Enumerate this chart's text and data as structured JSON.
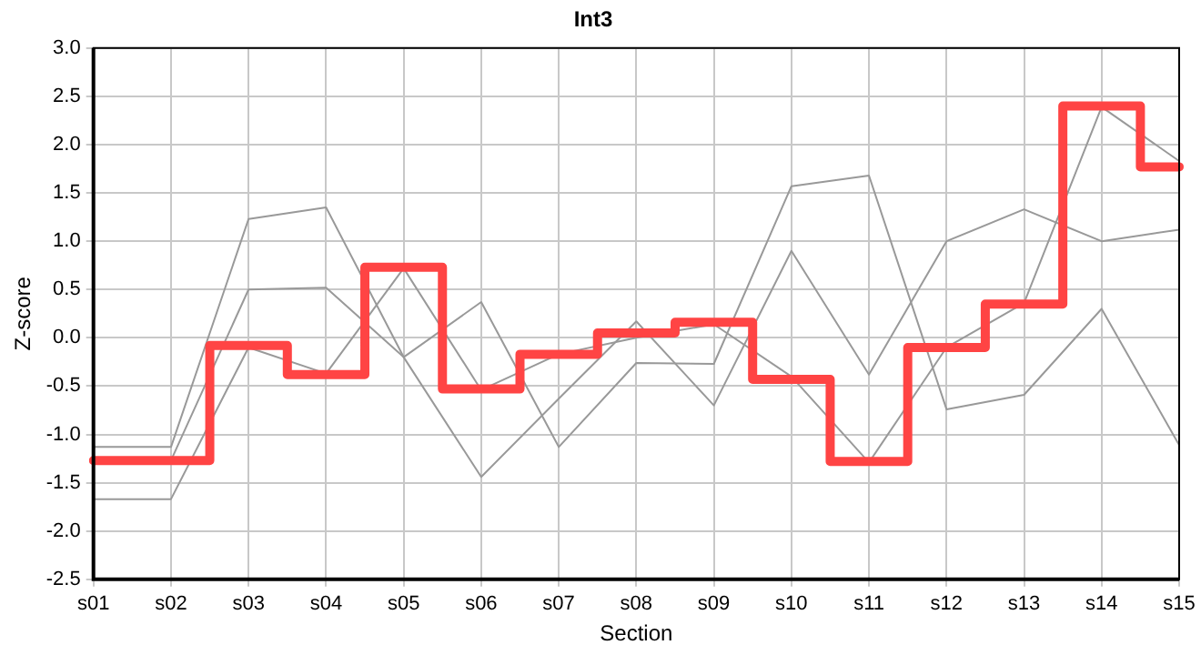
{
  "chart_data": {
    "type": "line",
    "title": "Int3",
    "xlabel": "Section",
    "ylabel": "Z-score",
    "categories": [
      "s01",
      "s02",
      "s03",
      "s04",
      "s05",
      "s06",
      "s07",
      "s08",
      "s09",
      "s10",
      "s11",
      "s12",
      "s13",
      "s14",
      "s15"
    ],
    "series": [
      {
        "type": "line",
        "color": "#999999",
        "values": [
          -1.13,
          -1.13,
          1.23,
          1.35,
          -0.2,
          -1.44,
          -0.63,
          0.17,
          -0.7,
          0.9,
          -0.38,
          1.0,
          1.33,
          1.0,
          1.12
        ]
      },
      {
        "type": "line",
        "color": "#999999",
        "values": [
          -1.27,
          -1.27,
          0.5,
          0.52,
          -0.2,
          0.37,
          -1.13,
          -0.26,
          -0.27,
          1.57,
          1.68,
          -0.74,
          -0.59,
          0.3,
          -1.11
        ]
      },
      {
        "type": "line",
        "color": "#999999",
        "values": [
          -1.67,
          -1.67,
          -0.1,
          -0.37,
          0.72,
          -0.54,
          -0.17,
          0.0,
          0.14,
          -0.4,
          -1.29,
          -0.1,
          0.36,
          2.39,
          1.83
        ]
      },
      {
        "type": "step",
        "color": "#ff4444",
        "values": [
          -1.27,
          -1.27,
          -0.08,
          -0.38,
          0.73,
          -0.53,
          -0.17,
          0.05,
          0.16,
          -0.43,
          -1.28,
          -0.1,
          0.35,
          2.4,
          1.77
        ]
      }
    ],
    "ylim": [
      -2.5,
      3.0
    ],
    "yticks": [
      -2.5,
      {
        "value": -2,
        "label": "-2.0"
      },
      -1.5,
      {
        "value": -1,
        "label": "-1.0"
      },
      -0.5,
      {
        "value": 0,
        "label": "0.0"
      },
      0.5,
      {
        "value": 1,
        "label": "1.0"
      },
      1.5,
      {
        "value": 2,
        "label": "2.0"
      },
      2.5,
      {
        "value": 3,
        "label": "3.0"
      }
    ],
    "grid": true,
    "legend": false,
    "marker": "none",
    "line_style": "solid"
  }
}
